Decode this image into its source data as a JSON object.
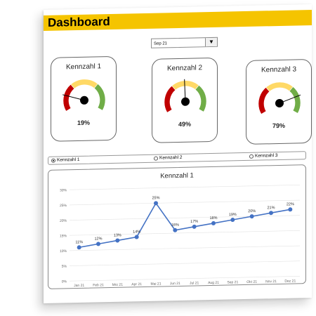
{
  "header": {
    "title": "Dashboard",
    "bar_color": "#f5c400"
  },
  "period_select": {
    "value": "Sep 21"
  },
  "gauges": [
    {
      "title": "Kennzahl  1",
      "value_label": "19%",
      "value": 19,
      "segments": [
        "#c00000",
        "#ffd966",
        "#70ad47"
      ]
    },
    {
      "title": "Kennzahl  2",
      "value_label": "49%",
      "value": 49,
      "segments": [
        "#c00000",
        "#ffd966",
        "#70ad47"
      ]
    },
    {
      "title": "Kennzahl  3",
      "value_label": "79%",
      "value": 79,
      "segments": [
        "#c00000",
        "#ffd966",
        "#70ad47"
      ]
    }
  ],
  "radio_options": [
    {
      "label": "Kennzahl 1",
      "selected": true
    },
    {
      "label": "Kennzahl 2",
      "selected": false
    },
    {
      "label": "Kennzahl 3",
      "selected": false
    }
  ],
  "chart_data": {
    "type": "line",
    "title": "Kennzahl  1",
    "categories": [
      "Jan 21",
      "Feb 21",
      "Mrz 21",
      "Apr 21",
      "Mai 21",
      "Jun 21",
      "Jul 21",
      "Aug 21",
      "Sep 21",
      "Okt 21",
      "Nov 21",
      "Dez 21"
    ],
    "values": [
      11,
      12,
      13,
      14,
      25,
      16,
      17,
      18,
      19,
      20,
      21,
      22
    ],
    "data_labels": [
      "11%",
      "12%",
      "13%",
      "14%",
      "25%",
      "16%",
      "17%",
      "18%",
      "19%",
      "20%",
      "21%",
      "22%"
    ],
    "y_ticks": [
      "0%",
      "5%",
      "10%",
      "15%",
      "20%",
      "25%",
      "30%"
    ],
    "ylim": [
      0,
      30
    ],
    "grid": true,
    "line_color": "#4472c4"
  }
}
